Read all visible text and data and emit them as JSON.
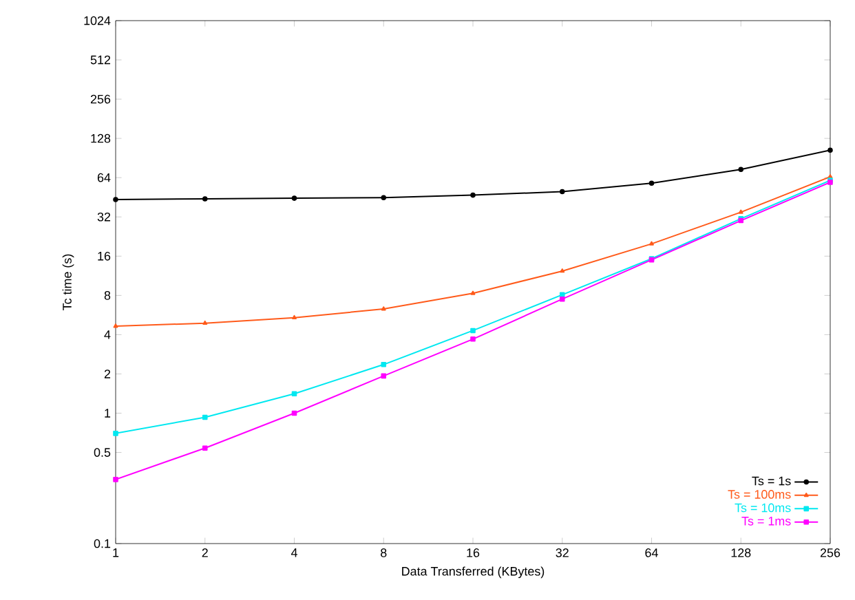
{
  "chart_data": {
    "type": "line",
    "xlabel": "Data Transferred (KBytes)",
    "ylabel": "Tc time (s)",
    "categories": [
      "1",
      "2",
      "4",
      "8",
      "16",
      "32",
      "64",
      "128",
      "256"
    ],
    "log": "y",
    "ylim": [
      0.1,
      1024
    ],
    "yticks": [
      0.1,
      0.5,
      1,
      2,
      4,
      8,
      16,
      32,
      64,
      128,
      256,
      512,
      1024
    ],
    "grid": false,
    "legend": "bottom right",
    "line_style": "solid",
    "series": [
      {
        "name": "Ts = 1s",
        "color": "#000000",
        "marker": "circle",
        "values": [
          43.5,
          44,
          44.5,
          45,
          47,
          50,
          58,
          74,
          104
        ]
      },
      {
        "name": "Ts = 100ms",
        "color": "#ff5a1a",
        "marker": "triangle",
        "values": [
          4.65,
          4.9,
          5.4,
          6.3,
          8.3,
          12.3,
          19.9,
          34.8,
          65
        ]
      },
      {
        "name": "Ts = 10ms",
        "color": "#00e8f0",
        "marker": "square",
        "values": [
          0.7,
          0.93,
          1.41,
          2.36,
          4.3,
          8.1,
          15.3,
          31,
          61
        ]
      },
      {
        "name": "Ts = 1ms",
        "color": "#ff00ff",
        "marker": "square",
        "values": [
          0.31,
          0.54,
          1.0,
          1.93,
          3.7,
          7.5,
          15,
          30,
          59
        ]
      }
    ]
  }
}
